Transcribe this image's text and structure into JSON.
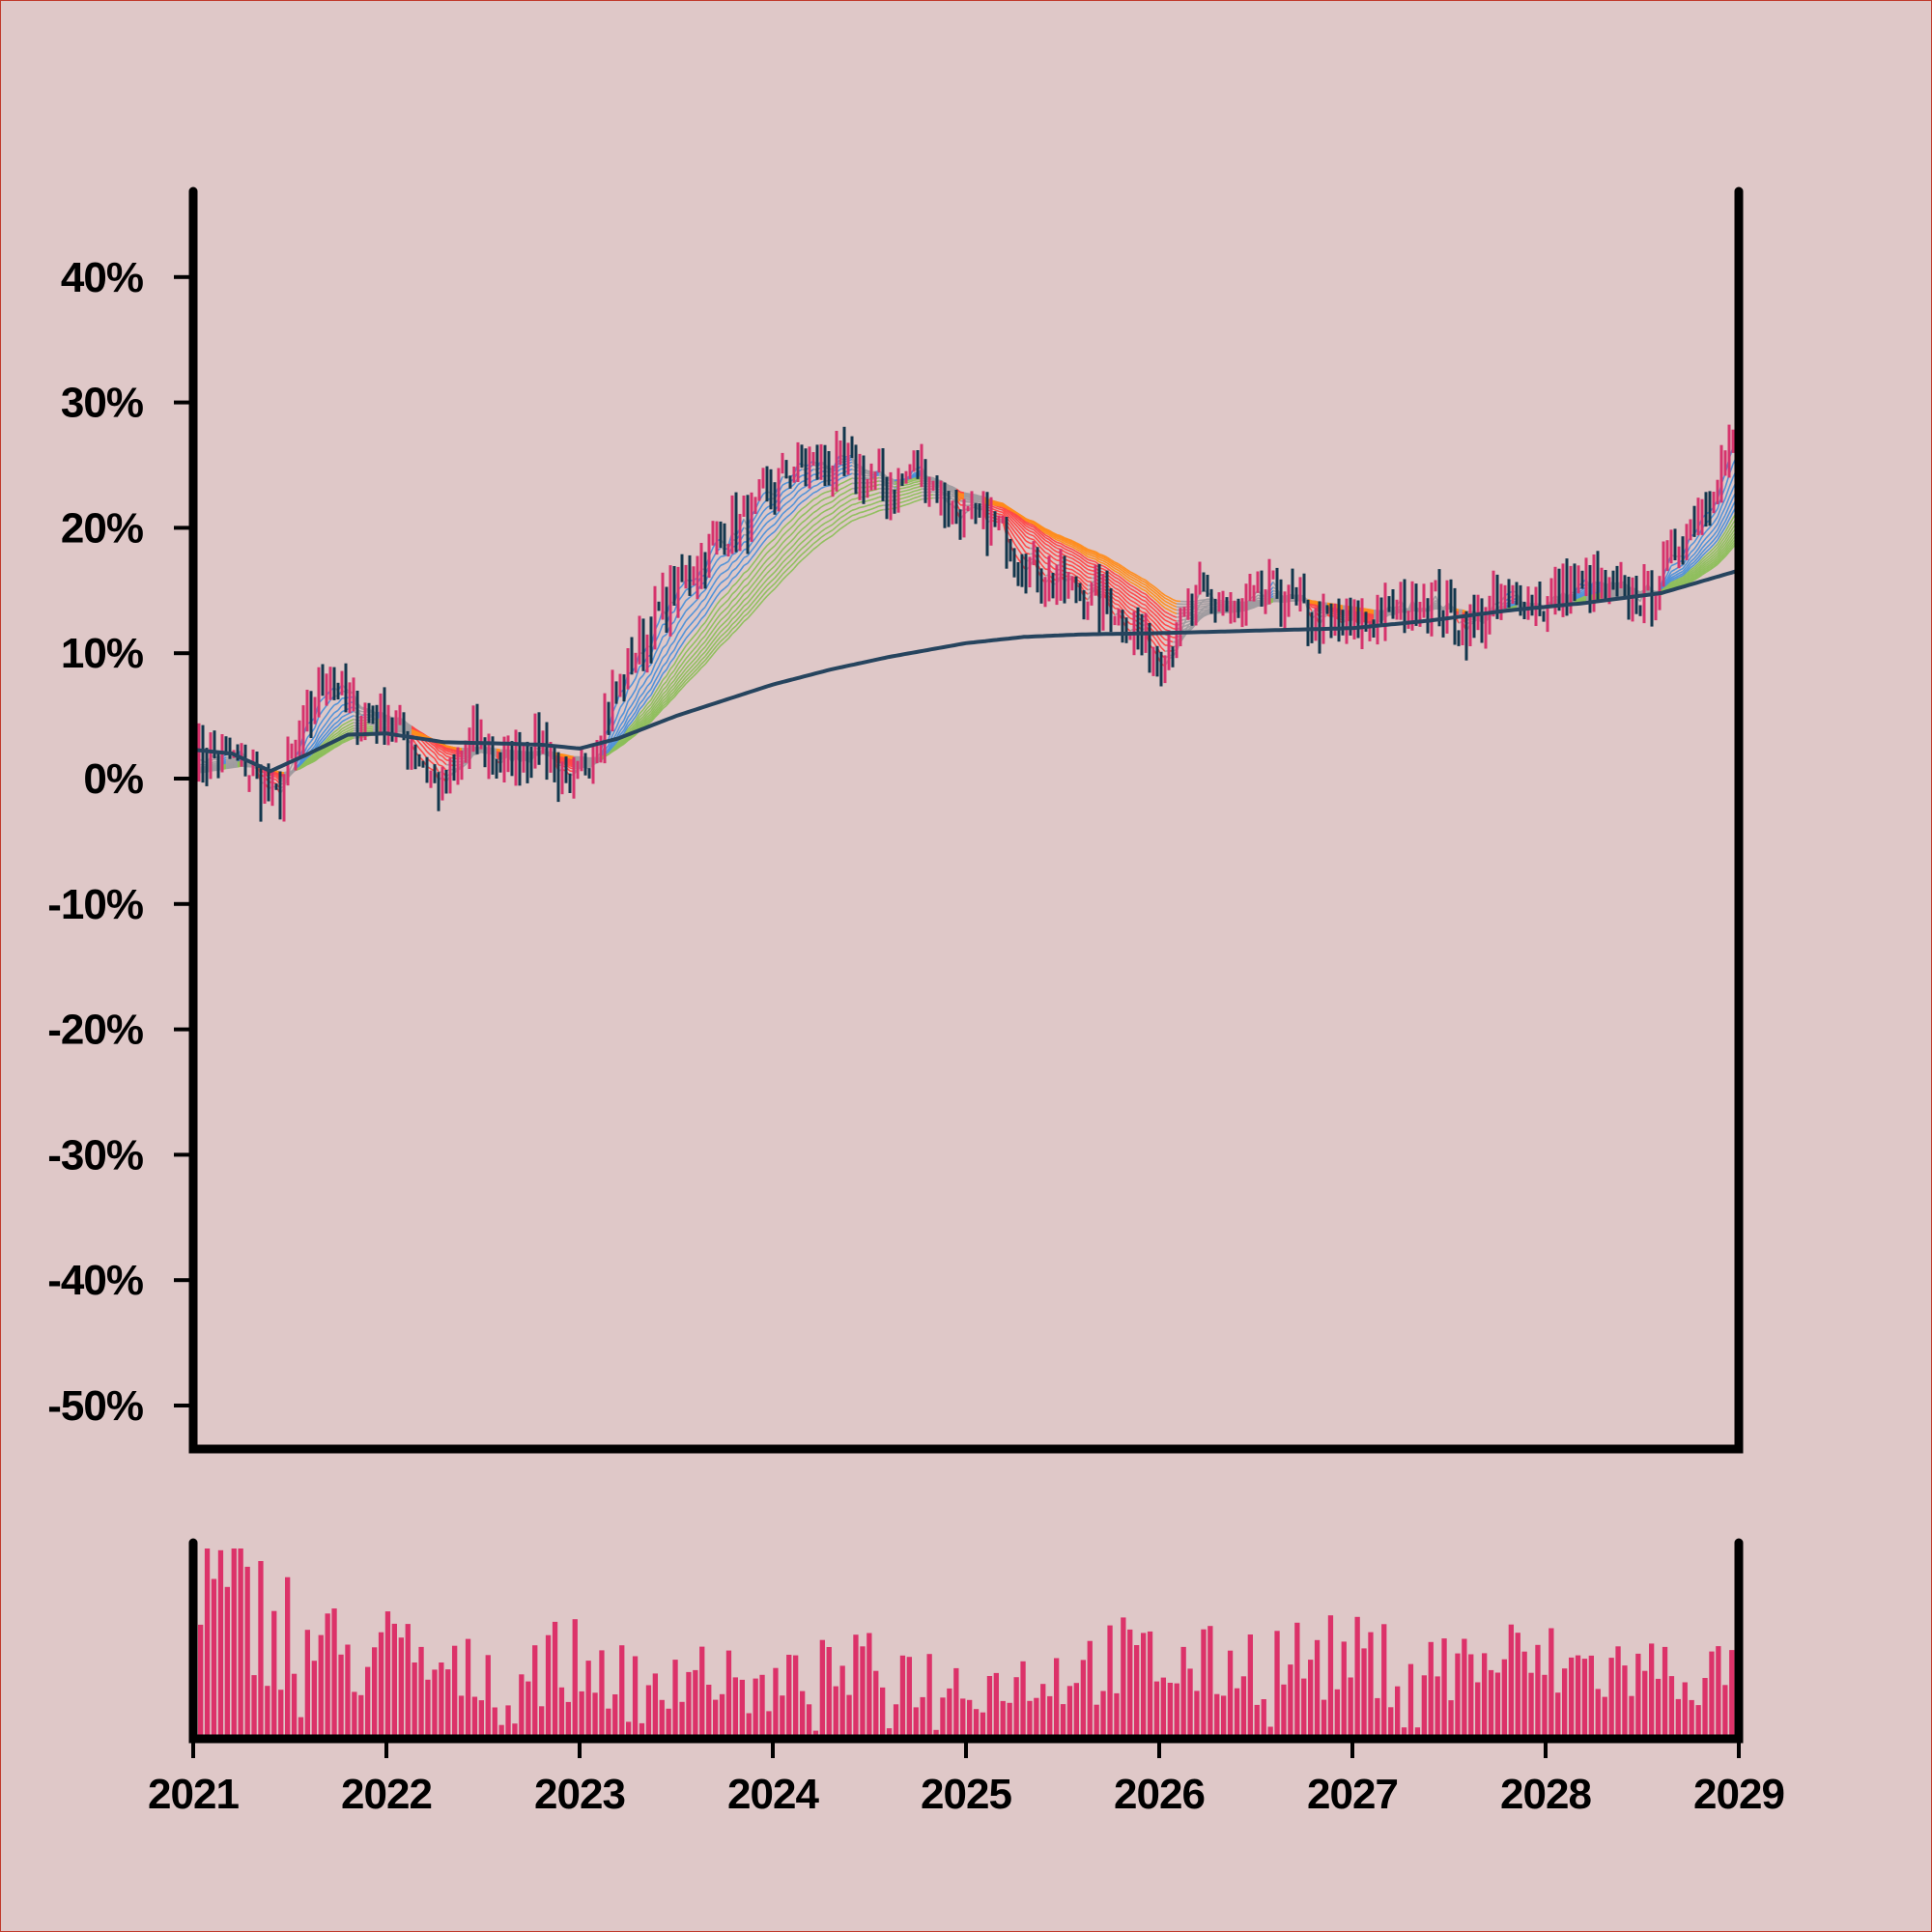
{
  "chart_data": [
    {
      "type": "candlestick",
      "x_range": [
        2021,
        2029
      ],
      "ylim": [
        -55,
        47
      ],
      "y_ticks": [
        40,
        30,
        20,
        10,
        0,
        -10,
        -20,
        -30,
        -40,
        -50
      ],
      "y_tick_labels": [
        "40%",
        "30%",
        "20%",
        "10%",
        "0%",
        "-10%",
        "-20%",
        "-30%",
        "-40%",
        "-50%"
      ],
      "price_trend": [
        [
          2021.0,
          2
        ],
        [
          2021.25,
          1.5
        ],
        [
          2021.42,
          -2
        ],
        [
          2021.55,
          3
        ],
        [
          2021.7,
          8.5
        ],
        [
          2021.85,
          5
        ],
        [
          2022.0,
          5
        ],
        [
          2022.15,
          2
        ],
        [
          2022.3,
          -1
        ],
        [
          2022.45,
          3
        ],
        [
          2022.6,
          1
        ],
        [
          2022.8,
          3
        ],
        [
          2022.95,
          -1.5
        ],
        [
          2023.1,
          4
        ],
        [
          2023.25,
          9
        ],
        [
          2023.45,
          14
        ],
        [
          2023.7,
          19
        ],
        [
          2023.9,
          21
        ],
        [
          2024.1,
          25
        ],
        [
          2024.35,
          25
        ],
        [
          2024.6,
          23
        ],
        [
          2024.75,
          25
        ],
        [
          2024.95,
          21
        ],
        [
          2025.15,
          20
        ],
        [
          2025.4,
          16
        ],
        [
          2025.6,
          15
        ],
        [
          2025.8,
          13
        ],
        [
          2026.0,
          9.5
        ],
        [
          2026.2,
          14.5
        ],
        [
          2026.4,
          13
        ],
        [
          2026.6,
          15
        ],
        [
          2026.8,
          12.5
        ],
        [
          2027.0,
          12
        ],
        [
          2027.2,
          13.5
        ],
        [
          2027.4,
          14.5
        ],
        [
          2027.6,
          12
        ],
        [
          2027.8,
          14.5
        ],
        [
          2028.0,
          14
        ],
        [
          2028.2,
          15.5
        ],
        [
          2028.4,
          14.5
        ],
        [
          2028.55,
          15
        ],
        [
          2028.7,
          19
        ],
        [
          2028.85,
          23
        ],
        [
          2029.0,
          28
        ]
      ],
      "long_ma": [
        [
          2021.0,
          2.3
        ],
        [
          2021.2,
          2.0
        ],
        [
          2021.4,
          0.6
        ],
        [
          2021.6,
          2.0
        ],
        [
          2021.8,
          3.5
        ],
        [
          2022.0,
          3.6
        ],
        [
          2022.3,
          2.9
        ],
        [
          2022.6,
          2.8
        ],
        [
          2022.8,
          2.7
        ],
        [
          2023.0,
          2.4
        ],
        [
          2023.2,
          3.2
        ],
        [
          2023.5,
          5.0
        ],
        [
          2023.8,
          6.5
        ],
        [
          2024.0,
          7.5
        ],
        [
          2024.3,
          8.7
        ],
        [
          2024.6,
          9.7
        ],
        [
          2025.0,
          10.8
        ],
        [
          2025.3,
          11.3
        ],
        [
          2025.6,
          11.5
        ],
        [
          2026.0,
          11.6
        ],
        [
          2026.5,
          11.8
        ],
        [
          2027.0,
          12.0
        ],
        [
          2027.4,
          12.6
        ],
        [
          2027.8,
          13.4
        ],
        [
          2028.2,
          14.0
        ],
        [
          2028.6,
          14.8
        ],
        [
          2029.0,
          16.6
        ]
      ],
      "ribbon_colors": {
        "up": "#4a90d9",
        "strong_up": "#8cbf5a",
        "down": "#ff4444",
        "weak_down": "#ff8c1a",
        "neutral": "#a09ca0"
      },
      "colors": {
        "up_candle": "#d6336c",
        "down_candle": "#13374d",
        "long_ma": "#26445e"
      }
    },
    {
      "type": "bar",
      "series": "volume",
      "color": "#dc3269",
      "x_ticks": [
        2021,
        2022,
        2023,
        2024,
        2025,
        2026,
        2027,
        2028,
        2029
      ],
      "x_tick_labels": [
        "2021",
        "2022",
        "2023",
        "2024",
        "2025",
        "2026",
        "2027",
        "2028",
        "2029"
      ],
      "volume_trend": [
        [
          2021.0,
          85
        ],
        [
          2021.3,
          75
        ],
        [
          2021.55,
          60
        ],
        [
          2021.8,
          45
        ],
        [
          2022.0,
          50
        ],
        [
          2022.3,
          35
        ],
        [
          2022.6,
          40
        ],
        [
          2022.9,
          45
        ],
        [
          2023.2,
          35
        ],
        [
          2023.6,
          40
        ],
        [
          2023.9,
          25
        ],
        [
          2024.2,
          35
        ],
        [
          2024.6,
          40
        ],
        [
          2025.0,
          30
        ],
        [
          2025.4,
          35
        ],
        [
          2025.8,
          45
        ],
        [
          2026.2,
          40
        ],
        [
          2026.6,
          45
        ],
        [
          2027.0,
          45
        ],
        [
          2027.4,
          40
        ],
        [
          2027.8,
          45
        ],
        [
          2028.2,
          40
        ],
        [
          2028.6,
          38
        ],
        [
          2029.0,
          35
        ]
      ]
    }
  ]
}
